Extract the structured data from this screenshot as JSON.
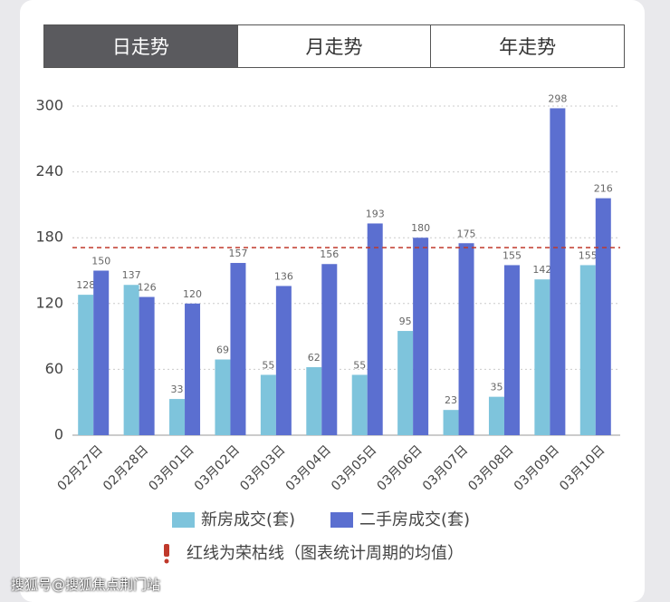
{
  "tabs": [
    "日走势",
    "月走势",
    "年走势"
  ],
  "active_tab": 0,
  "chart_data": {
    "type": "bar",
    "categories": [
      "02月27日",
      "02月28日",
      "03月01日",
      "03月02日",
      "03月03日",
      "03月04日",
      "03月05日",
      "03月06日",
      "03月07日",
      "03月08日",
      "03月09日",
      "03月10日"
    ],
    "series": [
      {
        "name": "新房成交(套)",
        "color": "#7ec4dc",
        "values": [
          128,
          137,
          33,
          69,
          55,
          62,
          55,
          95,
          23,
          35,
          142,
          155
        ]
      },
      {
        "name": "二手房成交(套)",
        "color": "#5b6fd0",
        "values": [
          150,
          126,
          120,
          157,
          136,
          156,
          193,
          180,
          175,
          155,
          298,
          216
        ]
      }
    ],
    "ylim": [
      0,
      300
    ],
    "yticks": [
      0,
      60,
      120,
      180,
      240,
      300
    ],
    "grid": true,
    "reference_line": {
      "value": 171,
      "color": "#c0392b"
    },
    "legend": "bottom"
  },
  "note": "红线为荣枯线（图表统计周期的均值）",
  "footer": "搜狐号@搜狐焦点荆门站"
}
